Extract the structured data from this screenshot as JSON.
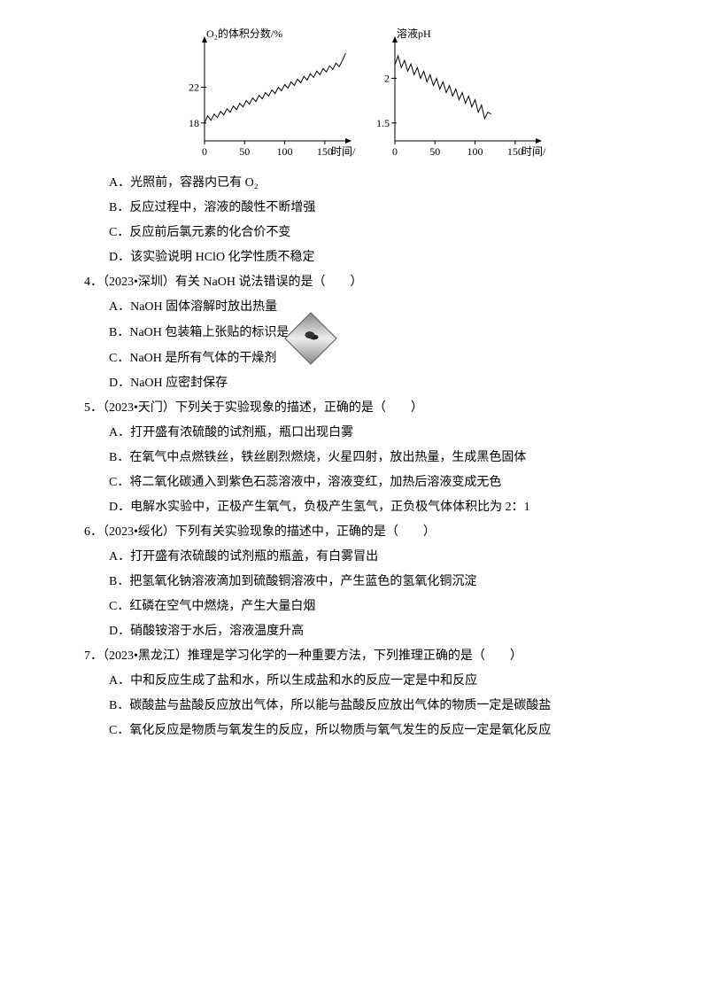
{
  "chart1": {
    "type": "line",
    "y_title": "O₂的体积分数/%",
    "x_title": "时间/s",
    "x_ticks": [
      0,
      50,
      100,
      150
    ],
    "y_ticks": [
      18,
      22
    ],
    "xlim": [
      0,
      180
    ],
    "ylim": [
      16,
      27
    ],
    "line_color": "#000000",
    "axis_color": "#000000",
    "font_size": 12,
    "points": [
      [
        0,
        18.0
      ],
      [
        4,
        18.8
      ],
      [
        8,
        18.3
      ],
      [
        12,
        19.0
      ],
      [
        16,
        18.6
      ],
      [
        20,
        19.3
      ],
      [
        24,
        18.9
      ],
      [
        28,
        19.6
      ],
      [
        32,
        19.2
      ],
      [
        36,
        19.9
      ],
      [
        40,
        19.5
      ],
      [
        44,
        20.2
      ],
      [
        48,
        19.8
      ],
      [
        52,
        20.5
      ],
      [
        56,
        20.1
      ],
      [
        60,
        20.8
      ],
      [
        64,
        20.4
      ],
      [
        68,
        21.1
      ],
      [
        72,
        20.7
      ],
      [
        76,
        21.4
      ],
      [
        80,
        21.0
      ],
      [
        84,
        21.7
      ],
      [
        88,
        21.3
      ],
      [
        92,
        22.0
      ],
      [
        96,
        21.6
      ],
      [
        100,
        22.3
      ],
      [
        104,
        21.9
      ],
      [
        108,
        22.6
      ],
      [
        112,
        22.2
      ],
      [
        116,
        22.9
      ],
      [
        120,
        22.5
      ],
      [
        124,
        23.2
      ],
      [
        128,
        22.8
      ],
      [
        132,
        23.5
      ],
      [
        136,
        23.1
      ],
      [
        140,
        23.8
      ],
      [
        144,
        23.4
      ],
      [
        148,
        24.1
      ],
      [
        152,
        23.7
      ],
      [
        156,
        24.4
      ],
      [
        160,
        24.0
      ],
      [
        164,
        24.7
      ],
      [
        168,
        24.3
      ],
      [
        172,
        25.0
      ],
      [
        176,
        25.8
      ]
    ]
  },
  "chart2": {
    "type": "line",
    "y_title": "溶液pH",
    "x_title": "时间/s",
    "x_ticks": [
      0,
      50,
      100,
      150
    ],
    "y_ticks": [
      1.5,
      2.0
    ],
    "xlim": [
      0,
      180
    ],
    "ylim": [
      1.3,
      2.4
    ],
    "line_color": "#000000",
    "axis_color": "#000000",
    "font_size": 12,
    "points": [
      [
        0,
        2.15
      ],
      [
        4,
        2.25
      ],
      [
        8,
        2.12
      ],
      [
        12,
        2.2
      ],
      [
        16,
        2.08
      ],
      [
        20,
        2.16
      ],
      [
        24,
        2.04
      ],
      [
        28,
        2.12
      ],
      [
        32,
        2.0
      ],
      [
        36,
        2.08
      ],
      [
        40,
        1.96
      ],
      [
        44,
        2.04
      ],
      [
        48,
        1.92
      ],
      [
        52,
        2.0
      ],
      [
        56,
        1.88
      ],
      [
        60,
        1.96
      ],
      [
        64,
        1.84
      ],
      [
        68,
        1.92
      ],
      [
        72,
        1.8
      ],
      [
        76,
        1.88
      ],
      [
        80,
        1.76
      ],
      [
        84,
        1.84
      ],
      [
        88,
        1.72
      ],
      [
        92,
        1.8
      ],
      [
        96,
        1.68
      ],
      [
        100,
        1.76
      ],
      [
        104,
        1.62
      ],
      [
        108,
        1.7
      ],
      [
        112,
        1.55
      ],
      [
        116,
        1.62
      ],
      [
        120,
        1.6
      ]
    ]
  },
  "options_q3": {
    "a": "A．光照前，容器内已有 O₂",
    "b": "B．反应过程中，溶液的酸性不断增强",
    "c": "C．反应前后氯元素的化合价不变",
    "d": "D．该实验说明 HClO 化学性质不稳定"
  },
  "q4": {
    "stem": "4．（2023•深圳）有关 NaOH 说法错误的是（　　）",
    "a": "A．NaOH 固体溶解时放出热量",
    "b": "B．NaOH 包装箱上张贴的标识是",
    "c": "C．NaOH 是所有气体的干燥剂",
    "d": "D．NaOH 应密封保存"
  },
  "q5": {
    "stem": "5．（2023•天门）下列关于实验现象的描述，正确的是（　　）",
    "a": "A．打开盛有浓硫酸的试剂瓶，瓶口出现白雾",
    "b": "B．在氧气中点燃铁丝，铁丝剧烈燃烧，火星四射，放出热量，生成黑色固体",
    "c": "C．将二氧化碳通入到紫色石蕊溶液中，溶液变红，加热后溶液变成无色",
    "d": "D．电解水实验中，正极产生氧气，负极产生氢气，正负极气体体积比为 2：1"
  },
  "q6": {
    "stem": "6．（2023•绥化）下列有关实验现象的描述中，正确的是（　　）",
    "a": "A．打开盛有浓硫酸的试剂瓶的瓶盖，有白雾冒出",
    "b": "B．把氢氧化钠溶液滴加到硫酸铜溶液中，产生蓝色的氢氧化铜沉淀",
    "c": "C．红磷在空气中燃烧，产生大量白烟",
    "d": "D．硝酸铵溶于水后，溶液温度升高"
  },
  "q7": {
    "stem": "7．（2023•黑龙江）推理是学习化学的一种重要方法，下列推理正确的是（　　）",
    "a": "A．中和反应生成了盐和水，所以生成盐和水的反应一定是中和反应",
    "b": "B．碳酸盐与盐酸反应放出气体，所以能与盐酸反应放出气体的物质一定是碳酸盐",
    "c": "C．氧化反应是物质与氧发生的反应，所以物质与氧气发生的反应一定是氧化反应"
  }
}
